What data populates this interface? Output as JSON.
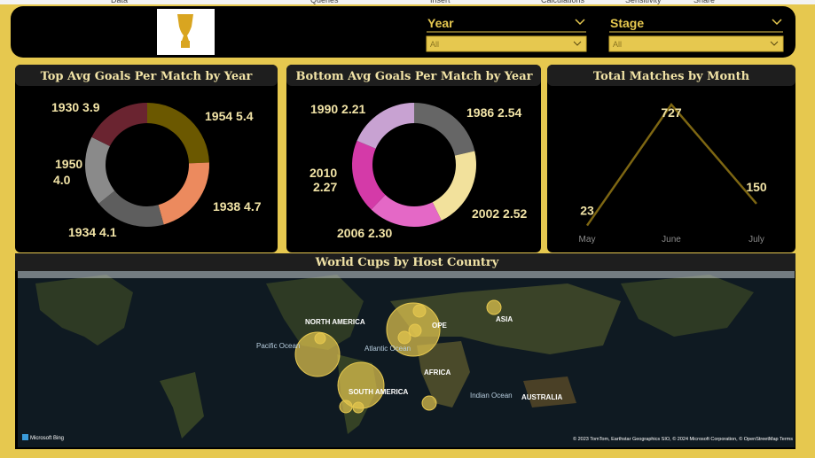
{
  "ribbon": [
    "Data",
    "Queries",
    "Insert",
    "Calculations",
    "Sensitivity",
    "Share"
  ],
  "filters": [
    {
      "label": "Year",
      "value": "All"
    },
    {
      "label": "Stage",
      "value": "All"
    }
  ],
  "chart_data": [
    {
      "type": "donut",
      "title": "Top Avg Goals Per Match by Year",
      "categories": [
        "1954",
        "1938",
        "1934",
        "1950",
        "1930"
      ],
      "values": [
        5.4,
        4.7,
        4.1,
        4.0,
        3.9
      ],
      "value_labels": [
        "5.4",
        "4.7",
        "4.1",
        "4.0",
        "3.9"
      ],
      "colors": [
        "#6b5800",
        "#ec8a5e",
        "#5e5e5e",
        "#8a8a8a",
        "#6a2430"
      ]
    },
    {
      "type": "donut",
      "title": "Bottom Avg Goals Per Match by Year",
      "categories": [
        "1986",
        "2002",
        "2006",
        "2010",
        "1990"
      ],
      "values": [
        2.54,
        2.52,
        2.3,
        2.27,
        2.21
      ],
      "value_labels": [
        "2.54",
        "2.52",
        "2.30",
        "2.27",
        "2.21"
      ],
      "colors": [
        "#666666",
        "#f2e19c",
        "#e468c6",
        "#d43aa8",
        "#c8a2d2"
      ]
    },
    {
      "type": "line",
      "title": "Total Matches by Month",
      "categories": [
        "May",
        "June",
        "July"
      ],
      "values": [
        23,
        727,
        150
      ],
      "color": "#7d6612"
    }
  ],
  "map": {
    "title": "World Cups by Host Country",
    "labels": [
      "NORTH AMERICA",
      "SOUTH AMERICA",
      "OPE",
      "ASIA",
      "AFRICA",
      "AUSTRALIA",
      "Pacific Ocean",
      "Atlantic Ocean",
      "Indian Ocean"
    ],
    "attribution": "Microsoft Bing",
    "copyright": "© 2023 TomTom, Earthstar Geographics SIO, © 2024 Microsoft Corporation, © OpenStreetMap  Terms"
  }
}
